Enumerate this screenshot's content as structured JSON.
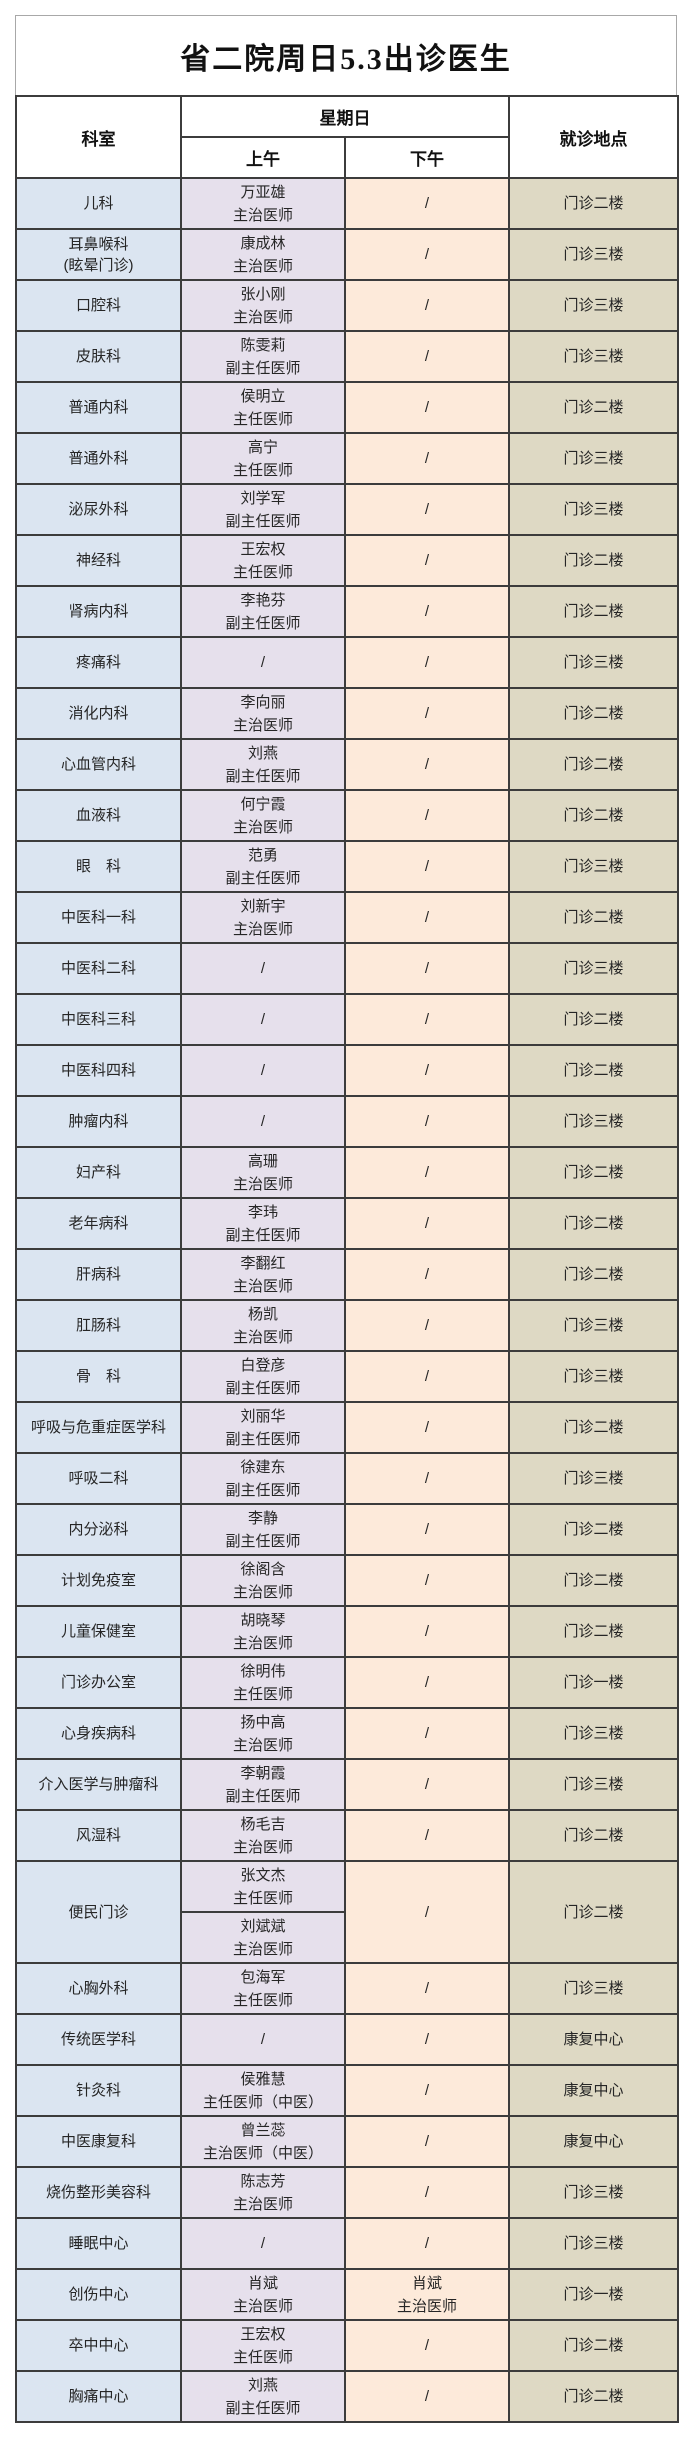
{
  "title": "省二院周日5.3出诊医生",
  "header": {
    "department": "科室",
    "day": "星期日",
    "morning": "上午",
    "afternoon": "下午",
    "location": "就诊地点"
  },
  "colors": {
    "department_column": "#dbe5f1",
    "morning_column": "#e6e0ec",
    "afternoon_column": "#fdeada",
    "location_column": "#ded9c4",
    "border": "#3c3c3c"
  },
  "rows": [
    {
      "dept": [
        "儿科"
      ],
      "morning": [
        "万亚雄",
        "主治医师"
      ],
      "afternoon": [
        "/"
      ],
      "location": "门诊二楼"
    },
    {
      "dept": [
        "耳鼻喉科",
        "(眩晕门诊)"
      ],
      "morning": [
        "康成林",
        "主治医师"
      ],
      "afternoon": [
        "/"
      ],
      "location": "门诊三楼"
    },
    {
      "dept": [
        "口腔科"
      ],
      "morning": [
        "张小刚",
        "主治医师"
      ],
      "afternoon": [
        "/"
      ],
      "location": "门诊三楼"
    },
    {
      "dept": [
        "皮肤科"
      ],
      "morning": [
        "陈雯莉",
        "副主任医师"
      ],
      "afternoon": [
        "/"
      ],
      "location": "门诊三楼"
    },
    {
      "dept": [
        "普通内科"
      ],
      "morning": [
        "侯明立",
        "主任医师"
      ],
      "afternoon": [
        "/"
      ],
      "location": "门诊二楼"
    },
    {
      "dept": [
        "普通外科"
      ],
      "morning": [
        "高宁",
        "主任医师"
      ],
      "afternoon": [
        "/"
      ],
      "location": "门诊三楼"
    },
    {
      "dept": [
        "泌尿外科"
      ],
      "morning": [
        "刘学军",
        "副主任医师"
      ],
      "afternoon": [
        "/"
      ],
      "location": "门诊三楼"
    },
    {
      "dept": [
        "神经科"
      ],
      "morning": [
        "王宏权",
        "主任医师"
      ],
      "afternoon": [
        "/"
      ],
      "location": "门诊二楼"
    },
    {
      "dept": [
        "肾病内科"
      ],
      "morning": [
        "李艳芬",
        "副主任医师"
      ],
      "afternoon": [
        "/"
      ],
      "location": "门诊二楼"
    },
    {
      "dept": [
        "疼痛科"
      ],
      "morning": [
        "/"
      ],
      "afternoon": [
        "/"
      ],
      "location": "门诊三楼"
    },
    {
      "dept": [
        "消化内科"
      ],
      "morning": [
        "李向丽",
        "主治医师"
      ],
      "afternoon": [
        "/"
      ],
      "location": "门诊二楼"
    },
    {
      "dept": [
        "心血管内科"
      ],
      "morning": [
        "刘燕",
        "副主任医师"
      ],
      "afternoon": [
        "/"
      ],
      "location": "门诊二楼"
    },
    {
      "dept": [
        "血液科"
      ],
      "morning": [
        "何宁霞",
        "主治医师"
      ],
      "afternoon": [
        "/"
      ],
      "location": "门诊二楼"
    },
    {
      "dept": [
        "眼　科"
      ],
      "morning": [
        "范勇",
        "副主任医师"
      ],
      "afternoon": [
        "/"
      ],
      "location": "门诊三楼"
    },
    {
      "dept": [
        "中医科一科"
      ],
      "morning": [
        "刘新宇",
        "主治医师"
      ],
      "afternoon": [
        "/"
      ],
      "location": "门诊二楼"
    },
    {
      "dept": [
        "中医科二科"
      ],
      "morning": [
        "/"
      ],
      "afternoon": [
        "/"
      ],
      "location": "门诊三楼"
    },
    {
      "dept": [
        "中医科三科"
      ],
      "morning": [
        "/"
      ],
      "afternoon": [
        "/"
      ],
      "location": "门诊二楼"
    },
    {
      "dept": [
        "中医科四科"
      ],
      "morning": [
        "/"
      ],
      "afternoon": [
        "/"
      ],
      "location": "门诊二楼"
    },
    {
      "dept": [
        "肿瘤内科"
      ],
      "morning": [
        "/"
      ],
      "afternoon": [
        "/"
      ],
      "location": "门诊三楼"
    },
    {
      "dept": [
        "妇产科"
      ],
      "morning": [
        "高珊",
        "主治医师"
      ],
      "afternoon": [
        "/"
      ],
      "location": "门诊二楼"
    },
    {
      "dept": [
        "老年病科"
      ],
      "morning": [
        "李玮",
        "副主任医师"
      ],
      "afternoon": [
        "/"
      ],
      "location": "门诊二楼"
    },
    {
      "dept": [
        "肝病科"
      ],
      "morning": [
        "李翻红",
        "主治医师"
      ],
      "afternoon": [
        "/"
      ],
      "location": "门诊二楼"
    },
    {
      "dept": [
        "肛肠科"
      ],
      "morning": [
        "杨凯",
        "主治医师"
      ],
      "afternoon": [
        "/"
      ],
      "location": "门诊三楼"
    },
    {
      "dept": [
        "骨　科"
      ],
      "morning": [
        "白登彦",
        "副主任医师"
      ],
      "afternoon": [
        "/"
      ],
      "location": "门诊三楼"
    },
    {
      "dept": [
        "呼吸与危重症医学科"
      ],
      "morning": [
        "刘丽华",
        "副主任医师"
      ],
      "afternoon": [
        "/"
      ],
      "location": "门诊二楼"
    },
    {
      "dept": [
        "呼吸二科"
      ],
      "morning": [
        "徐建东",
        "副主任医师"
      ],
      "afternoon": [
        "/"
      ],
      "location": "门诊三楼"
    },
    {
      "dept": [
        "内分泌科"
      ],
      "morning": [
        "李静",
        "副主任医师"
      ],
      "afternoon": [
        "/"
      ],
      "location": "门诊二楼"
    },
    {
      "dept": [
        "计划免疫室"
      ],
      "morning": [
        "徐阁含",
        "主治医师"
      ],
      "afternoon": [
        "/"
      ],
      "location": "门诊二楼"
    },
    {
      "dept": [
        "儿童保健室"
      ],
      "morning": [
        "胡晓琴",
        "主治医师"
      ],
      "afternoon": [
        "/"
      ],
      "location": "门诊二楼"
    },
    {
      "dept": [
        "门诊办公室"
      ],
      "morning": [
        "徐明伟",
        "主任医师"
      ],
      "afternoon": [
        "/"
      ],
      "location": "门诊一楼"
    },
    {
      "dept": [
        "心身疾病科"
      ],
      "morning": [
        "扬中高",
        "主治医师"
      ],
      "afternoon": [
        "/"
      ],
      "location": "门诊三楼"
    },
    {
      "dept": [
        "介入医学与肿瘤科"
      ],
      "morning": [
        "李朝霞",
        "副主任医师"
      ],
      "afternoon": [
        "/"
      ],
      "location": "门诊三楼"
    },
    {
      "dept": [
        "风湿科"
      ],
      "morning": [
        "杨毛吉",
        "主治医师"
      ],
      "afternoon": [
        "/"
      ],
      "location": "门诊二楼"
    },
    {
      "dept": [
        "便民门诊"
      ],
      "morning_split": [
        [
          "张文杰",
          "主任医师"
        ],
        [
          "刘斌斌",
          "主治医师"
        ]
      ],
      "afternoon": [
        "/"
      ],
      "location": "门诊二楼"
    },
    {
      "dept": [
        "心胸外科"
      ],
      "morning": [
        "包海军",
        "主任医师"
      ],
      "afternoon": [
        "/"
      ],
      "location": "门诊三楼"
    },
    {
      "dept": [
        "传统医学科"
      ],
      "morning": [
        "/"
      ],
      "afternoon": [
        "/"
      ],
      "location": "康复中心"
    },
    {
      "dept": [
        "针灸科"
      ],
      "morning": [
        "侯雅慧",
        "主任医师（中医）"
      ],
      "afternoon": [
        "/"
      ],
      "location": "康复中心"
    },
    {
      "dept": [
        "中医康复科"
      ],
      "morning": [
        "曾兰蕊",
        "主治医师（中医）"
      ],
      "afternoon": [
        "/"
      ],
      "location": "康复中心"
    },
    {
      "dept": [
        "烧伤整形美容科"
      ],
      "morning": [
        "陈志芳",
        "主治医师"
      ],
      "afternoon": [
        "/"
      ],
      "location": "门诊三楼"
    },
    {
      "dept": [
        "睡眠中心"
      ],
      "morning": [
        "/"
      ],
      "afternoon": [
        "/"
      ],
      "location": "门诊三楼"
    },
    {
      "dept": [
        "创伤中心"
      ],
      "morning": [
        "肖斌",
        "主治医师"
      ],
      "afternoon": [
        "肖斌",
        "主治医师"
      ],
      "location": "门诊一楼"
    },
    {
      "dept": [
        "卒中中心"
      ],
      "morning": [
        "王宏权",
        "主任医师"
      ],
      "afternoon": [
        "/"
      ],
      "location": "门诊二楼"
    },
    {
      "dept": [
        "胸痛中心"
      ],
      "morning": [
        "刘燕",
        "副主任医师"
      ],
      "afternoon": [
        "/"
      ],
      "location": "门诊二楼"
    }
  ]
}
